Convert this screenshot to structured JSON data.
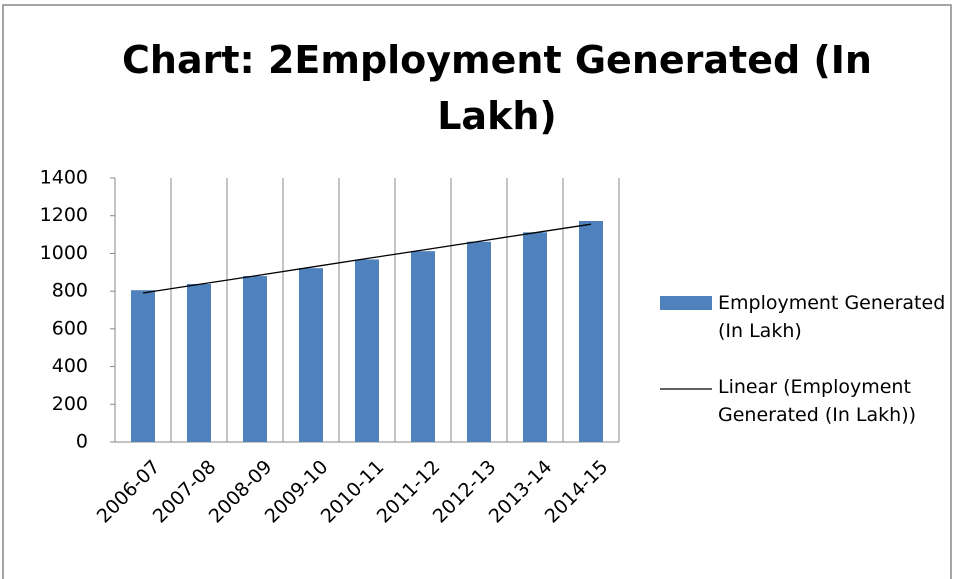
{
  "chart_data": {
    "type": "bar",
    "title": "Chart: 2Employment Generated (In Lakh)",
    "categories": [
      "2006-07",
      "2007-08",
      "2008-09",
      "2009-10",
      "2010-11",
      "2011-12",
      "2012-13",
      "2013-14",
      "2014-15"
    ],
    "series": [
      {
        "name": "Employment Generated (In Lakh)",
        "color": "#4f81bd",
        "type": "bar",
        "values": [
          805,
          838,
          880,
          922,
          968,
          1012,
          1062,
          1112,
          1172
        ]
      },
      {
        "name": "Linear (Employment Generated (In Lakh))",
        "color": "#000000",
        "type": "line",
        "values": [
          790,
          836,
          881,
          927,
          973,
          1018,
          1064,
          1110,
          1155
        ]
      }
    ],
    "ylim": [
      0,
      1400
    ],
    "yticks": [
      0,
      200,
      400,
      600,
      800,
      1000,
      1200,
      1400
    ],
    "grid": "x",
    "legend": "right"
  }
}
